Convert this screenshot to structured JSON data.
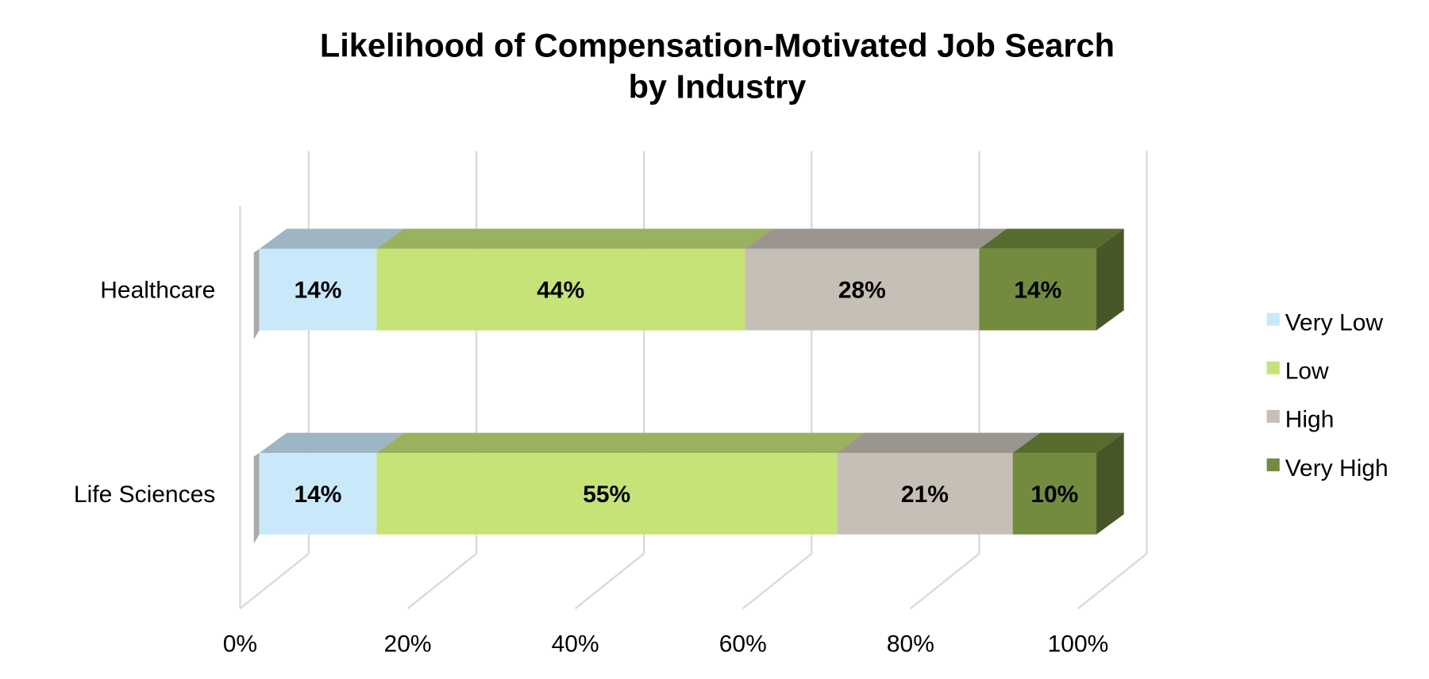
{
  "chart_data": {
    "type": "bar",
    "orientation": "horizontal",
    "stacked": "percent",
    "style": "3d",
    "title": "Likelihood of Compensation-Motivated Job Search",
    "subtitle": "by Industry",
    "categories": [
      "Healthcare",
      "Life Sciences"
    ],
    "series": [
      {
        "name": "Very Low",
        "color": "#c9e9fb",
        "values": [
          14,
          14
        ],
        "labels": [
          "14%",
          "14%"
        ]
      },
      {
        "name": "Low",
        "color": "#c6e377",
        "values": [
          44,
          55
        ],
        "labels": [
          "44%",
          "55%"
        ]
      },
      {
        "name": "High",
        "color": "#c5bfb6",
        "values": [
          28,
          21
        ],
        "labels": [
          "28%",
          "21%"
        ]
      },
      {
        "name": "Very High",
        "color": "#728b3e",
        "values": [
          14,
          10
        ],
        "labels": [
          "14%",
          "10%"
        ]
      }
    ],
    "xlim": [
      0,
      100
    ],
    "xticks": [
      "0%",
      "20%",
      "40%",
      "60%",
      "80%",
      "100%"
    ],
    "grid": true,
    "legend": "right"
  }
}
